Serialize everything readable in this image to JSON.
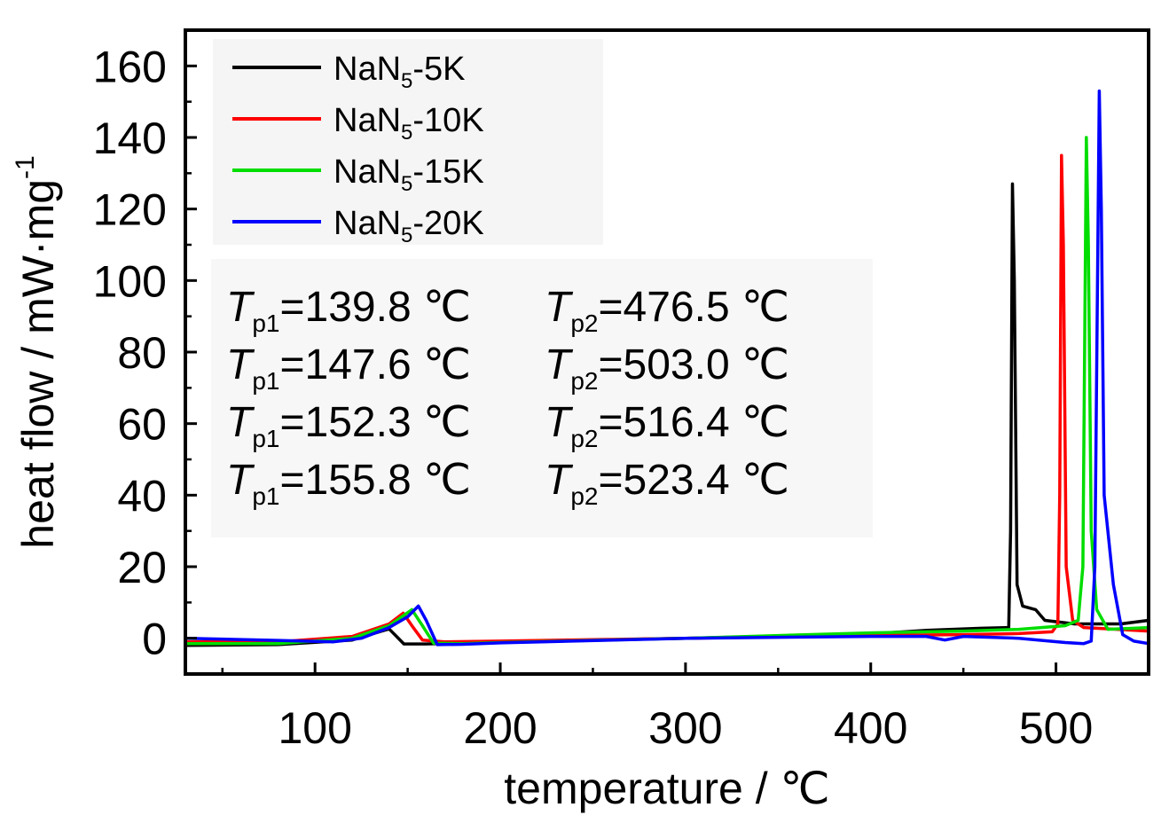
{
  "chart_data": {
    "type": "line",
    "xlabel": "temperature / ℃",
    "ylabel_main": "heat flow / mW·mg",
    "ylabel_sup": "-1",
    "xlim": [
      30,
      550
    ],
    "ylim": [
      -10,
      170
    ],
    "x_ticks": [
      100,
      200,
      300,
      400,
      500
    ],
    "y_ticks": [
      0,
      20,
      40,
      60,
      80,
      100,
      120,
      140,
      160
    ],
    "x_tick_labels": [
      "100",
      "200",
      "300",
      "400",
      "500"
    ],
    "y_tick_labels": [
      "0",
      "20",
      "40",
      "60",
      "80",
      "100",
      "120",
      "140",
      "160"
    ],
    "legend_position": "top-left",
    "grid": false,
    "series": [
      {
        "name_main": "NaN",
        "name_sub": "5",
        "name_tail": "-5K",
        "color": "#000000",
        "points": [
          [
            30,
            -2
          ],
          [
            80,
            -1.8
          ],
          [
            120,
            -0.5
          ],
          [
            136,
            2
          ],
          [
            140,
            2.6
          ],
          [
            144,
            0.5
          ],
          [
            148,
            -1.6
          ],
          [
            160,
            -1.6
          ],
          [
            200,
            -1
          ],
          [
            300,
            0
          ],
          [
            400,
            1.2
          ],
          [
            430,
            2.2
          ],
          [
            460,
            2.8
          ],
          [
            474.5,
            3
          ],
          [
            475.5,
            30
          ],
          [
            476.5,
            127
          ],
          [
            477.5,
            100
          ],
          [
            479,
            15
          ],
          [
            482,
            9
          ],
          [
            489,
            8
          ],
          [
            494,
            5
          ],
          [
            510,
            4
          ],
          [
            535,
            4
          ],
          [
            550,
            5
          ]
        ]
      },
      {
        "name_main": "NaN",
        "name_sub": "5",
        "name_tail": "-10K",
        "color": "#ff0000",
        "points": [
          [
            30,
            -1
          ],
          [
            80,
            -1
          ],
          [
            120,
            0.5
          ],
          [
            140,
            4
          ],
          [
            147.6,
            7
          ],
          [
            153,
            3
          ],
          [
            158,
            -0.5
          ],
          [
            170,
            -1
          ],
          [
            200,
            -0.8
          ],
          [
            300,
            0
          ],
          [
            400,
            0.8
          ],
          [
            450,
            1
          ],
          [
            480,
            1.3
          ],
          [
            498,
            1.8
          ],
          [
            501,
            4
          ],
          [
            502,
            40
          ],
          [
            503,
            135
          ],
          [
            504,
            110
          ],
          [
            505.5,
            20
          ],
          [
            509,
            5
          ],
          [
            515,
            3
          ],
          [
            550,
            2
          ]
        ]
      },
      {
        "name_main": "NaN",
        "name_sub": "5",
        "name_tail": "-15K",
        "color": "#00dd00",
        "points": [
          [
            30,
            -1.5
          ],
          [
            80,
            -1.5
          ],
          [
            120,
            0
          ],
          [
            140,
            3.5
          ],
          [
            152.3,
            8
          ],
          [
            158,
            3.5
          ],
          [
            164,
            -1.4
          ],
          [
            180,
            -1.5
          ],
          [
            200,
            -1.2
          ],
          [
            300,
            0
          ],
          [
            400,
            1.5
          ],
          [
            450,
            2
          ],
          [
            480,
            2.5
          ],
          [
            505,
            3.5
          ],
          [
            512,
            5
          ],
          [
            514.5,
            20
          ],
          [
            516.4,
            140
          ],
          [
            517.5,
            110
          ],
          [
            519,
            30
          ],
          [
            522,
            8
          ],
          [
            528,
            2.5
          ],
          [
            550,
            3
          ]
        ]
      },
      {
        "name_main": "NaN",
        "name_sub": "5",
        "name_tail": "-20K",
        "color": "#0000ff",
        "points": [
          [
            30,
            0
          ],
          [
            80,
            -0.6
          ],
          [
            110,
            -1
          ],
          [
            125,
            0
          ],
          [
            140,
            3
          ],
          [
            150,
            6
          ],
          [
            155.8,
            9
          ],
          [
            160,
            5
          ],
          [
            166,
            -1.8
          ],
          [
            180,
            -1.7
          ],
          [
            200,
            -1.3
          ],
          [
            300,
            0
          ],
          [
            400,
            0.5
          ],
          [
            430,
            0.5
          ],
          [
            440,
            -0.5
          ],
          [
            450,
            0.5
          ],
          [
            480,
            0
          ],
          [
            505,
            -1.2
          ],
          [
            515,
            -1.5
          ],
          [
            519,
            -0.8
          ],
          [
            521,
            20
          ],
          [
            523.4,
            153
          ],
          [
            524.5,
            120
          ],
          [
            526,
            40
          ],
          [
            531,
            15
          ],
          [
            536,
            1
          ],
          [
            542,
            -0.8
          ],
          [
            550,
            -1.5
          ]
        ]
      }
    ],
    "annotations": [
      [
        {
          "sym": "T",
          "sub": "p1",
          "val": "=139.8 ℃"
        },
        {
          "sym": "T",
          "sub": "p2",
          "val": "=476.5 ℃"
        }
      ],
      [
        {
          "sym": "T",
          "sub": "p1",
          "val": "=147.6 ℃"
        },
        {
          "sym": "T",
          "sub": "p2",
          "val": "=503.0 ℃"
        }
      ],
      [
        {
          "sym": "T",
          "sub": "p1",
          "val": "=152.3 ℃"
        },
        {
          "sym": "T",
          "sub": "p2",
          "val": "=516.4 ℃"
        }
      ],
      [
        {
          "sym": "T",
          "sub": "p1",
          "val": "=155.8 ℃"
        },
        {
          "sym": "T",
          "sub": "p2",
          "val": "=523.4 ℃"
        }
      ]
    ]
  }
}
